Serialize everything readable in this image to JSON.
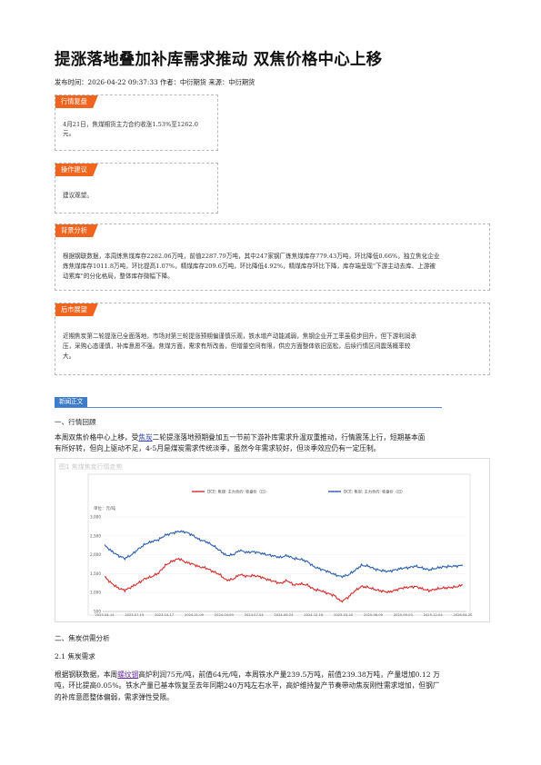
{
  "header": {
    "title": "提涨落地叠加补库需求推动 双焦价格中心上移",
    "meta": "发布时间：2026-04-22 09:37:33 作者：中衍期货 来源：中衍期货"
  },
  "sections": {
    "review": {
      "tag": "行情复盘",
      "text1": "4月21日，焦煤期货主力合约收涨1.53%至1262.0",
      "text2": "元。"
    },
    "advice": {
      "tag": "操作建议",
      "text": "建议观望。"
    },
    "background": {
      "tag": "背景分析",
      "line1": "根据钢联数据，本周炼焦煤库存2282.06万吨，前值2287.79万吨，其中247家钢厂炼焦煤库存779.43万吨，环比降低0.66%，独立焦化企业",
      "line2": "炼焦煤库存1011.8万吨，环比提高1.07%，精煤库存209.6万吨，环比降低4.92%，精煤库存环比下降，库存端呈现\"下游主动去库、上游被",
      "line3": "动累库\"的分化格局，整体库存微幅下降。"
    },
    "outlook": {
      "tag": "后市展望",
      "line1": "近期焦炭第二轮提涨已全面落地，市场对第三轮提涨预期偏谨慎乐观，铁水增产动能减弱，焦钢企业开工率虽稳步回升，但下游利润承",
      "line2": "压，采购心态谨慎，补库意愿不强。焦煤方面，需求有所改善，但增量空间有限，供应方面整体依旧宽松，后续行情区间震荡概率较",
      "line3": "大。"
    }
  },
  "news": {
    "tag": "新闻正文",
    "h1": "一、行情回顾",
    "p1_pre": "本周双焦价格中心上移，受",
    "p1_link": "焦炭",
    "p1_post": "二轮提涨落地预期叠加五一节前下游补库需求升温双重推动，行情震荡上行，短期基本面",
    "p1_line2": "有所好转，但向上驱动不足，4-5月是煤炭需求传统淡季，虽然今年需求较好，但淡季效应仍有一定压制。",
    "h2": "二、焦炭供需分析",
    "h3": "2.1 焦炭需求",
    "p2_pre": "根据钢联数据，本周",
    "p2_link": "螺纹钢",
    "p2_post": "高炉利润75元/吨，前值64元/吨，本周铁水产量239.5万吨，前值239.38万吨，产量增加0.12 万",
    "p2_line2": "吨，环比提高0.05%。铁水产量已基本恢复至去年同期240万吨左右水平，高炉维持复产节奏带动焦炭刚性需求增加，但钢厂",
    "p2_line3": "的补库意愿整体偏弱，需求弹性受限。"
  },
  "chart_data": {
    "type": "line",
    "title": "图1 焦煤焦炭行情走势",
    "ylabel": "单位：元/吨",
    "ylim": [
      500,
      3000
    ],
    "yticks": [
      "500",
      "1,000",
      "1,500",
      "2,000",
      "2,500",
      "3,000"
    ],
    "xticks": [
      "2023-04-14",
      "2023-07-19",
      "2023-10-17",
      "2024-01-09",
      "2024-04-09",
      "2024-07-04",
      "2024-09-24",
      "2024-12-16",
      "2025-03-20",
      "2025-06-09",
      "2025-09-03",
      "2025-12-04",
      "2026-04-20"
    ],
    "series": [
      {
        "name": "DCE: 焦煤: 主力合约: 收盘价（日）",
        "color": "#d62b2b",
        "values": [
          1420,
          1250,
          1120,
          1060,
          1150,
          1250,
          1370,
          1420,
          1520,
          1720,
          1830,
          1900,
          1800,
          1760,
          1680,
          1650,
          1560,
          1480,
          1330,
          1350,
          1480,
          1430,
          1450,
          1420,
          1350,
          1300,
          1240,
          1320,
          1200,
          1230,
          1200,
          1080,
          1050,
          980,
          920,
          760,
          870,
          1040,
          1160,
          1140,
          1080,
          1040,
          1010,
          1060,
          1120,
          1140,
          1160,
          1100,
          1050,
          1090,
          1120,
          1130,
          1150,
          1200
        ]
      },
      {
        "name": "DCE: 焦炭: 主力合约: 收盘价（日）",
        "color": "#2b5fad",
        "values": [
          2250,
          2100,
          1980,
          1900,
          2000,
          2150,
          2280,
          2350,
          2400,
          2520,
          2570,
          2620,
          2600,
          2520,
          2400,
          2350,
          2250,
          2120,
          1980,
          2000,
          2120,
          2060,
          2080,
          2050,
          2000,
          1970,
          1930,
          1980,
          1900,
          1880,
          1820,
          1680,
          1620,
          1560,
          1480,
          1420,
          1460,
          1580,
          1720,
          1700,
          1620,
          1580,
          1560,
          1600,
          1640,
          1660,
          1700,
          1650,
          1600,
          1640,
          1680,
          1690,
          1700,
          1720
        ]
      }
    ],
    "legend_position": "top"
  }
}
